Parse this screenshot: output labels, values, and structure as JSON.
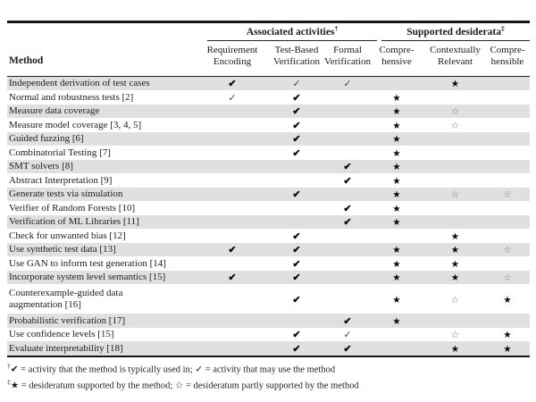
{
  "table": {
    "method_header": "Method",
    "groups": [
      {
        "label": "Associated activities",
        "sup": "†"
      },
      {
        "label": "Supported desiderata",
        "sup": "‡"
      }
    ],
    "columns": [
      {
        "line1": "Requirement",
        "line2": "Encoding"
      },
      {
        "line1": "Test-Based",
        "line2": "Verification"
      },
      {
        "line1": "Formal",
        "line2": "Verification"
      },
      {
        "line1": "Compre-",
        "line2": "hensive"
      },
      {
        "line1": "Contextually",
        "line2": "Relevant"
      },
      {
        "line1": "Compre-",
        "line2": "hensible"
      }
    ],
    "rows": [
      {
        "method": "Independent derivation of test cases",
        "marks": [
          "sc",
          "lc",
          "lc",
          "",
          "s",
          ""
        ]
      },
      {
        "method": "Normal and robustness tests [2]",
        "marks": [
          "lc",
          "sc",
          "",
          "s",
          "",
          ""
        ]
      },
      {
        "method": "Measure data coverage",
        "marks": [
          "",
          "sc",
          "",
          "s",
          "os",
          ""
        ]
      },
      {
        "method": "Measure model coverage [3, 4, 5]",
        "marks": [
          "",
          "sc",
          "",
          "s",
          "os",
          ""
        ]
      },
      {
        "method": "Guided fuzzing [6]",
        "marks": [
          "",
          "sc",
          "",
          "s",
          "",
          ""
        ]
      },
      {
        "method": "Combinatorial Testing [7]",
        "marks": [
          "",
          "sc",
          "",
          "s",
          "",
          ""
        ]
      },
      {
        "method": "SMT solvers [8]",
        "marks": [
          "",
          "",
          "sc",
          "s",
          "",
          ""
        ]
      },
      {
        "method": "Abstract Interpretation [9]",
        "marks": [
          "",
          "",
          "sc",
          "s",
          "",
          ""
        ]
      },
      {
        "method": "Generate tests via simulation",
        "marks": [
          "",
          "sc",
          "",
          "s",
          "os",
          "os"
        ]
      },
      {
        "method": "Verifier of Random Forests [10]",
        "marks": [
          "",
          "",
          "sc",
          "s",
          "",
          ""
        ]
      },
      {
        "method": "Verification of ML Libraries [11]",
        "marks": [
          "",
          "",
          "sc",
          "s",
          "",
          ""
        ]
      },
      {
        "method": "Check for unwanted bias [12]",
        "marks": [
          "",
          "sc",
          "",
          "",
          "s",
          ""
        ]
      },
      {
        "method": "Use synthetic test data [13]",
        "marks": [
          "sc",
          "sc",
          "",
          "s",
          "s",
          "os"
        ]
      },
      {
        "method": "Use GAN to inform test generation [14]",
        "marks": [
          "",
          "sc",
          "",
          "s",
          "s",
          ""
        ]
      },
      {
        "method": "Incorporate system level semantics [15]",
        "marks": [
          "sc",
          "sc",
          "",
          "s",
          "s",
          "os"
        ]
      },
      {
        "method": "Counterexample-guided data",
        "method2": "augmentation [16]",
        "marks": [
          "",
          "sc",
          "",
          "s",
          "os",
          "s"
        ]
      },
      {
        "method": "Probabilistic verification [17]",
        "marks": [
          "",
          "",
          "sc",
          "s",
          "",
          ""
        ]
      },
      {
        "method": "Use confidence levels [15]",
        "marks": [
          "",
          "sc",
          "lc",
          "",
          "os",
          "s"
        ]
      },
      {
        "method": "Evaluate interpretability [18]",
        "marks": [
          "",
          "sc",
          "sc",
          "",
          "s",
          "s"
        ]
      }
    ],
    "footnotes": [
      {
        "sup": "†",
        "text": "✔ = activity that the method is typically used in; ✓ = activity that may use the method"
      },
      {
        "sup": "‡",
        "text": "★ = desideratum supported by the method; ☆ = desideratum partly supported by the method"
      }
    ]
  },
  "symbols": {
    "sc": "✔",
    "lc": "✓",
    "s": "★",
    "os": "☆"
  },
  "symbol_names": {
    "sc": "strong-check-icon",
    "lc": "light-check-icon",
    "s": "star-icon",
    "os": "open-star-icon"
  },
  "colors": {
    "row_shading": "#e0e0e0",
    "text": "#1c1c1c",
    "rule": "#151515",
    "light_mark": "#4a4a4a",
    "open_star": "#7a7a7a"
  }
}
